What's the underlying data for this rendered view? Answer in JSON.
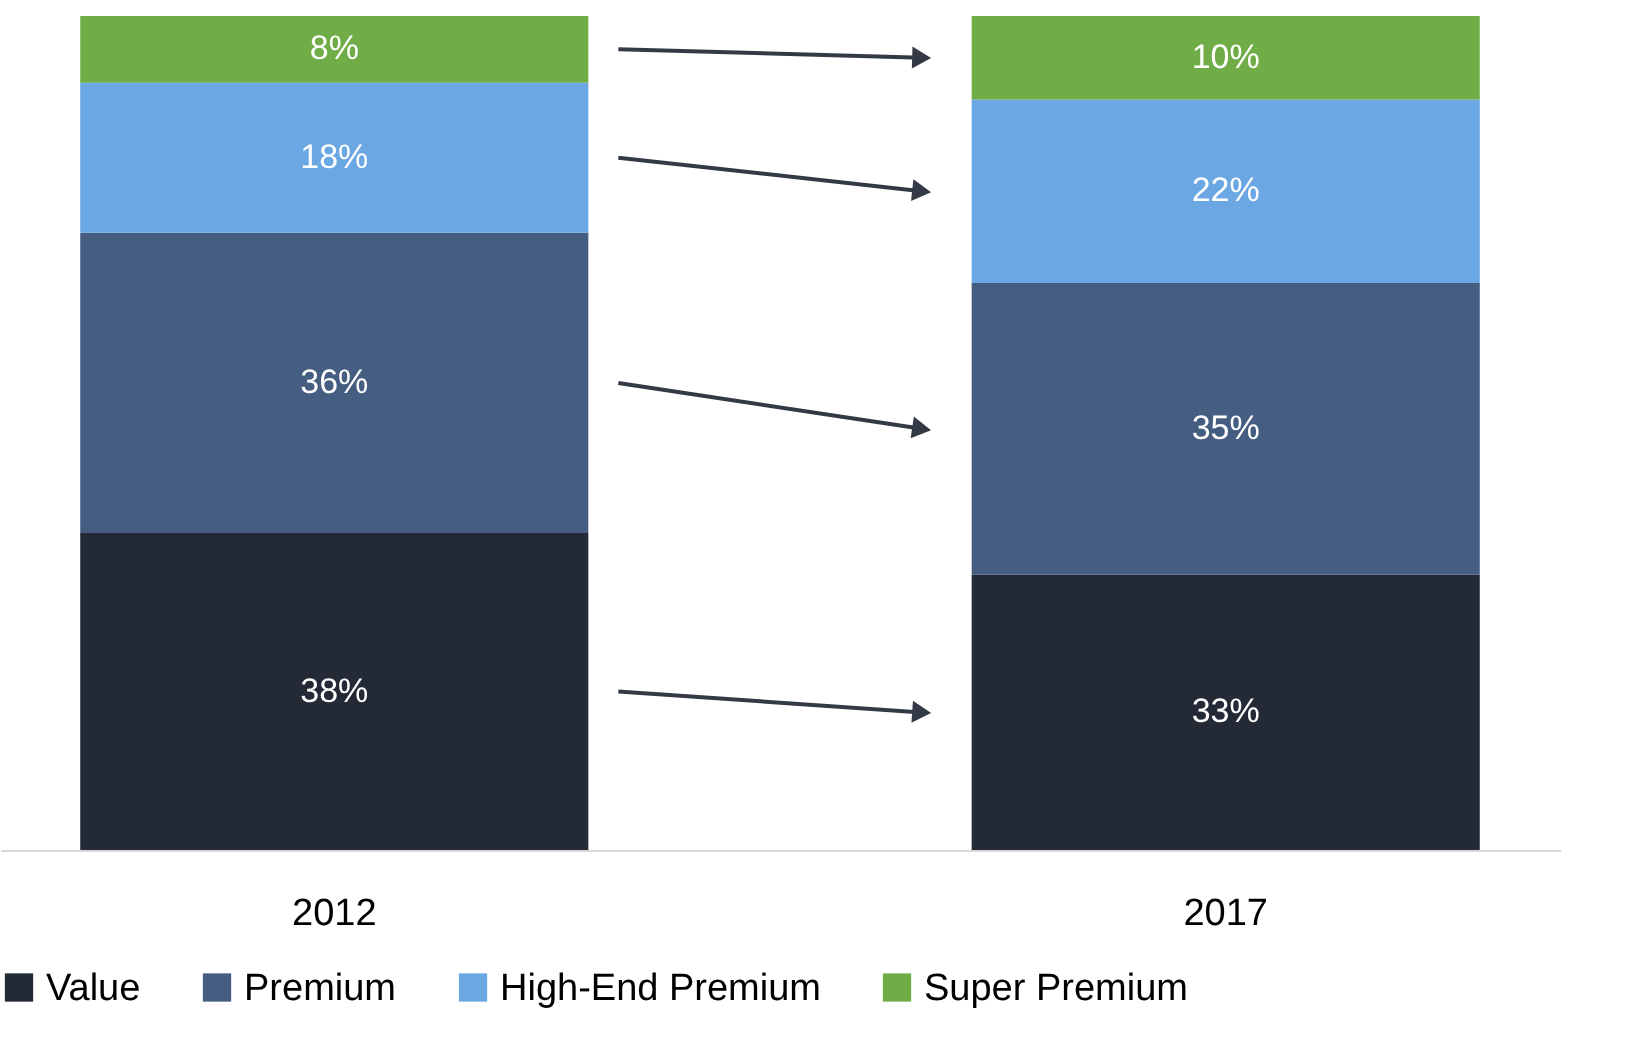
{
  "chart_data": {
    "type": "bar",
    "stacked": true,
    "categories": [
      "2012",
      "2017"
    ],
    "series": [
      {
        "name": "Value",
        "color": "#232a35",
        "values": [
          38,
          33
        ],
        "value_labels": [
          "38%",
          "33%"
        ]
      },
      {
        "name": "Premium",
        "color": "#445d80",
        "values": [
          36,
          35
        ],
        "value_labels": [
          "36%",
          "35%"
        ]
      },
      {
        "name": "High-End Premium",
        "color": "#6ba7e2",
        "values": [
          18,
          22
        ],
        "value_labels": [
          "18%",
          "22%"
        ]
      },
      {
        "name": "Super Premium",
        "color": "#70ad47",
        "values": [
          8,
          10
        ],
        "value_labels": [
          "8%",
          "10%"
        ]
      }
    ],
    "legend": "bottom",
    "grid": false
  }
}
